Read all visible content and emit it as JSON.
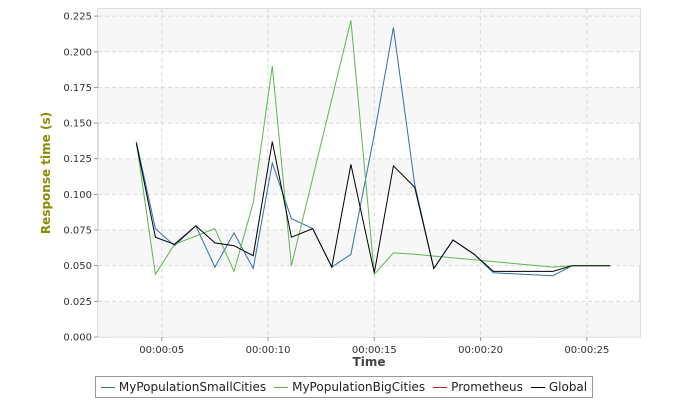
{
  "chart_data": {
    "type": "line",
    "title": "",
    "xlabel": "Time",
    "ylabel": "Response time (s)",
    "xlim": [
      2.0,
      27.5
    ],
    "ylim": [
      0,
      0.23
    ],
    "x_ticks": [
      5,
      10,
      15,
      20,
      25
    ],
    "x_tick_labels": [
      "00:00:05",
      "00:00:10",
      "00:00:15",
      "00:00:20",
      "00:00:25"
    ],
    "y_ticks": [
      0,
      0.025,
      0.05,
      0.075,
      0.1,
      0.125,
      0.15,
      0.175,
      0.2,
      0.225
    ],
    "y_tick_labels": [
      "0.000",
      "0.025",
      "0.050",
      "0.075",
      "0.100",
      "0.125",
      "0.150",
      "0.175",
      "0.200",
      "0.225"
    ],
    "grid": true,
    "legend_position": "bottom",
    "series": [
      {
        "name": "MyPopulationSmallCities",
        "color": "#2e6fb5",
        "points": [
          [
            3.8,
            0.137
          ],
          [
            4.7,
            0.076
          ],
          [
            5.6,
            0.064
          ],
          [
            6.6,
            0.078
          ],
          [
            7.5,
            0.049
          ],
          [
            8.4,
            0.073
          ],
          [
            9.3,
            0.048
          ],
          [
            10.2,
            0.122
          ],
          [
            11.1,
            0.083
          ],
          [
            12.1,
            0.076
          ],
          [
            13.0,
            0.049
          ],
          [
            13.9,
            0.058
          ],
          [
            15.0,
            0.142
          ],
          [
            15.9,
            0.217
          ],
          [
            16.9,
            0.107
          ],
          [
            17.8,
            0.048
          ],
          [
            18.7,
            0.068
          ],
          [
            19.7,
            0.058
          ],
          [
            20.6,
            0.045
          ],
          [
            23.4,
            0.043
          ],
          [
            24.3,
            0.05
          ]
        ]
      },
      {
        "name": "MyPopulationBigCities",
        "color": "#5bb84d",
        "points": [
          [
            3.8,
            0.137
          ],
          [
            4.7,
            0.044
          ],
          [
            5.6,
            0.065
          ],
          [
            7.5,
            0.076
          ],
          [
            8.4,
            0.046
          ],
          [
            9.3,
            0.094
          ],
          [
            10.2,
            0.19
          ],
          [
            11.1,
            0.05
          ],
          [
            13.9,
            0.222
          ],
          [
            15.0,
            0.044
          ],
          [
            15.9,
            0.059
          ],
          [
            16.9,
            0.058
          ],
          [
            23.4,
            0.049
          ],
          [
            24.3,
            0.05
          ],
          [
            26.1,
            0.05
          ]
        ]
      },
      {
        "name": "Prometheus",
        "color": "#a52a2a",
        "points": []
      },
      {
        "name": "Global",
        "color": "#000000",
        "points": [
          [
            3.8,
            0.136
          ],
          [
            4.7,
            0.07
          ],
          [
            5.6,
            0.065
          ],
          [
            6.6,
            0.078
          ],
          [
            7.5,
            0.066
          ],
          [
            8.4,
            0.064
          ],
          [
            9.3,
            0.057
          ],
          [
            10.2,
            0.137
          ],
          [
            11.1,
            0.07
          ],
          [
            12.1,
            0.076
          ],
          [
            13.0,
            0.049
          ],
          [
            13.9,
            0.121
          ],
          [
            15.0,
            0.045
          ],
          [
            15.9,
            0.12
          ],
          [
            16.9,
            0.105
          ],
          [
            17.8,
            0.048
          ],
          [
            18.7,
            0.068
          ],
          [
            19.7,
            0.058
          ],
          [
            20.6,
            0.046
          ],
          [
            23.4,
            0.046
          ],
          [
            24.3,
            0.05
          ],
          [
            26.1,
            0.05
          ]
        ]
      }
    ]
  }
}
